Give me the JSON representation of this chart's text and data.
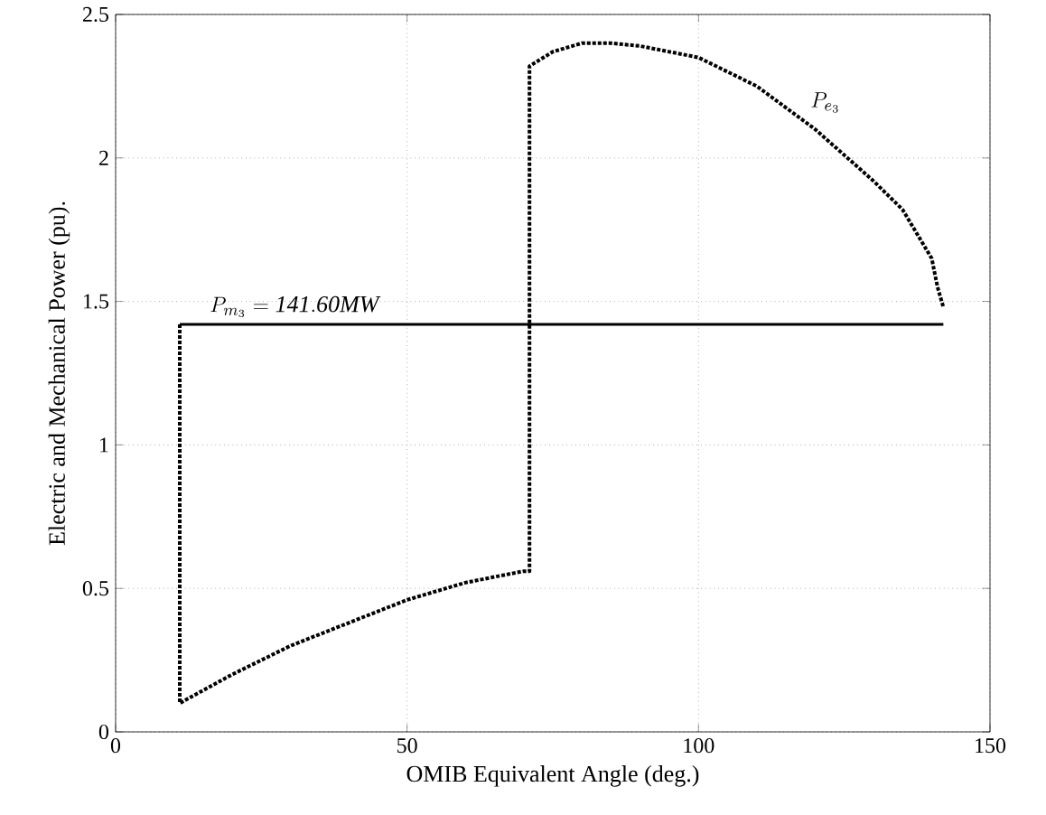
{
  "chart_data": {
    "type": "line",
    "xlabel": "OMIB Equivalent Angle (deg.)",
    "ylabel": "Electric and Mechanical Power (pu).",
    "xlim": [
      0,
      150
    ],
    "ylim": [
      0,
      2.5
    ],
    "xticks": [
      0,
      50,
      100,
      150
    ],
    "yticks": [
      0,
      0.5,
      1,
      1.5,
      2,
      2.5
    ],
    "grid": true,
    "series": [
      {
        "name": "P_{e_3}",
        "color": "#000000",
        "line_style": "dotted",
        "x": [
          11,
          11,
          20,
          30,
          40,
          50,
          60,
          70,
          71,
          71,
          75,
          80,
          85,
          90,
          100,
          110,
          120,
          130,
          135,
          140,
          141,
          142
        ],
        "values": [
          1.42,
          0.1,
          0.2,
          0.3,
          0.38,
          0.46,
          0.52,
          0.56,
          0.56,
          2.32,
          2.37,
          2.4,
          2.4,
          2.39,
          2.35,
          2.25,
          2.1,
          1.92,
          1.82,
          1.65,
          1.55,
          1.48
        ]
      },
      {
        "name": "P_{m_3}=\\mathit{141.60MW}",
        "color": "#000000",
        "line_style": "solid",
        "x": [
          11,
          142
        ],
        "values": [
          1.42,
          1.42
        ]
      }
    ]
  }
}
